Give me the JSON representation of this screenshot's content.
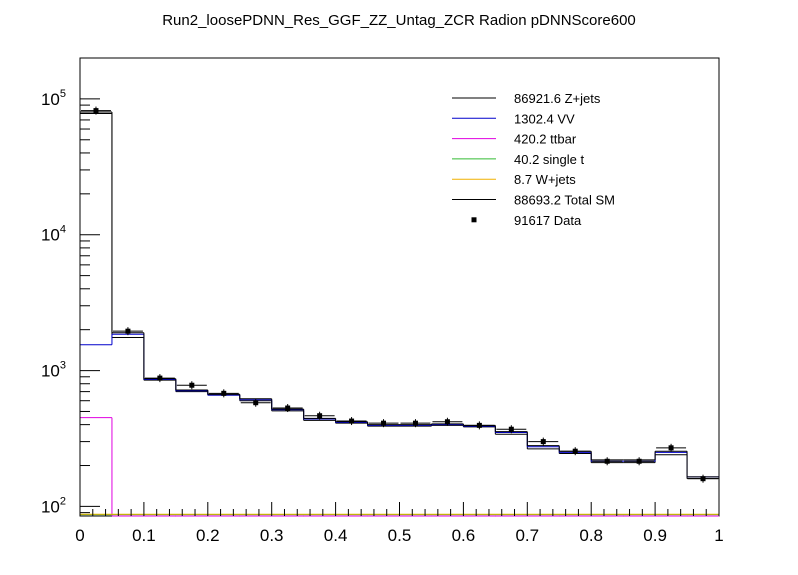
{
  "chart_data": {
    "type": "histogram",
    "title": "Run2_loosePDNN_Res_GGF_ZZ_Untag_ZCR Radion  pDNNScore600",
    "xlabel": "",
    "ylabel": "",
    "xlim": [
      0,
      1
    ],
    "ylim": [
      85,
      200000
    ],
    "yscale": "log",
    "x_ticks": [
      "0",
      "0.1",
      "0.2",
      "0.3",
      "0.4",
      "0.5",
      "0.6",
      "0.7",
      "0.8",
      "0.9",
      "1"
    ],
    "y_ticks": [
      {
        "base": "10",
        "exp": "2"
      },
      {
        "base": "10",
        "exp": "3"
      },
      {
        "base": "10",
        "exp": "4"
      },
      {
        "base": "10",
        "exp": "5"
      }
    ],
    "bin_edges": [
      0,
      0.05,
      0.1,
      0.15,
      0.2,
      0.25,
      0.3,
      0.35,
      0.4,
      0.45,
      0.5,
      0.55,
      0.6,
      0.65,
      0.7,
      0.75,
      0.8,
      0.85,
      0.9,
      0.95,
      1.0
    ],
    "series": [
      {
        "name": "Z+jets",
        "yield": "86921.6",
        "color": "#000000",
        "values": [
          78000,
          1750,
          850,
          700,
          660,
          600,
          505,
          430,
          410,
          390,
          390,
          395,
          385,
          340,
          265,
          245,
          210,
          210,
          240,
          160
        ]
      },
      {
        "name": "VV",
        "yield": "1302.4",
        "color": "#0000cc",
        "values": [
          1550,
          1850,
          860,
          710,
          660,
          610,
          515,
          440,
          415,
          395,
          395,
          400,
          390,
          350,
          275,
          250,
          215,
          215,
          250,
          165
        ]
      },
      {
        "name": "ttbar",
        "yield": "420.2",
        "color": "#e000e0",
        "values": [
          450,
          0,
          0,
          0,
          0,
          0,
          0,
          0,
          0,
          0,
          0,
          0,
          0,
          0,
          0,
          0,
          0,
          0,
          0,
          0
        ]
      },
      {
        "name": "single t",
        "yield": "40.2",
        "color": "#33bb33",
        "values": [
          0,
          0,
          0,
          0,
          0,
          0,
          0,
          0,
          0,
          0,
          0,
          0,
          0,
          0,
          0,
          0,
          0,
          0,
          0,
          0
        ]
      },
      {
        "name": "W+jets",
        "yield": "8.7",
        "color": "#f0b000",
        "values": [
          0,
          0,
          0,
          0,
          0,
          0,
          0,
          0,
          0,
          0,
          0,
          0,
          0,
          0,
          0,
          0,
          0,
          0,
          0,
          0
        ]
      },
      {
        "name": "Total SM",
        "yield": "88693.2",
        "color": "#000000",
        "values": [
          80000,
          1900,
          870,
          720,
          670,
          620,
          520,
          445,
          420,
          400,
          400,
          405,
          395,
          355,
          280,
          255,
          220,
          220,
          255,
          165
        ]
      }
    ],
    "data_points": {
      "name": "Data",
      "yield": "91617",
      "values": [
        82000,
        1950,
        880,
        780,
        680,
        580,
        530,
        465,
        425,
        410,
        410,
        420,
        395,
        370,
        300,
        255,
        215,
        215,
        270,
        160
      ]
    },
    "legend": [
      {
        "text": "86921.6 Z+jets",
        "color": "#000000",
        "marker": "line"
      },
      {
        "text": "1302.4 VV",
        "color": "#0000cc",
        "marker": "line"
      },
      {
        "text": "420.2 ttbar",
        "color": "#e000e0",
        "marker": "line"
      },
      {
        "text": "40.2 single t",
        "color": "#33bb33",
        "marker": "line"
      },
      {
        "text": "8.7 W+jets",
        "color": "#f0b000",
        "marker": "line"
      },
      {
        "text": "88693.2 Total SM",
        "color": "#000000",
        "marker": "line"
      },
      {
        "text": "91617 Data",
        "color": "#000000",
        "marker": "point"
      }
    ],
    "legend_position": "top-right",
    "grid": false
  }
}
